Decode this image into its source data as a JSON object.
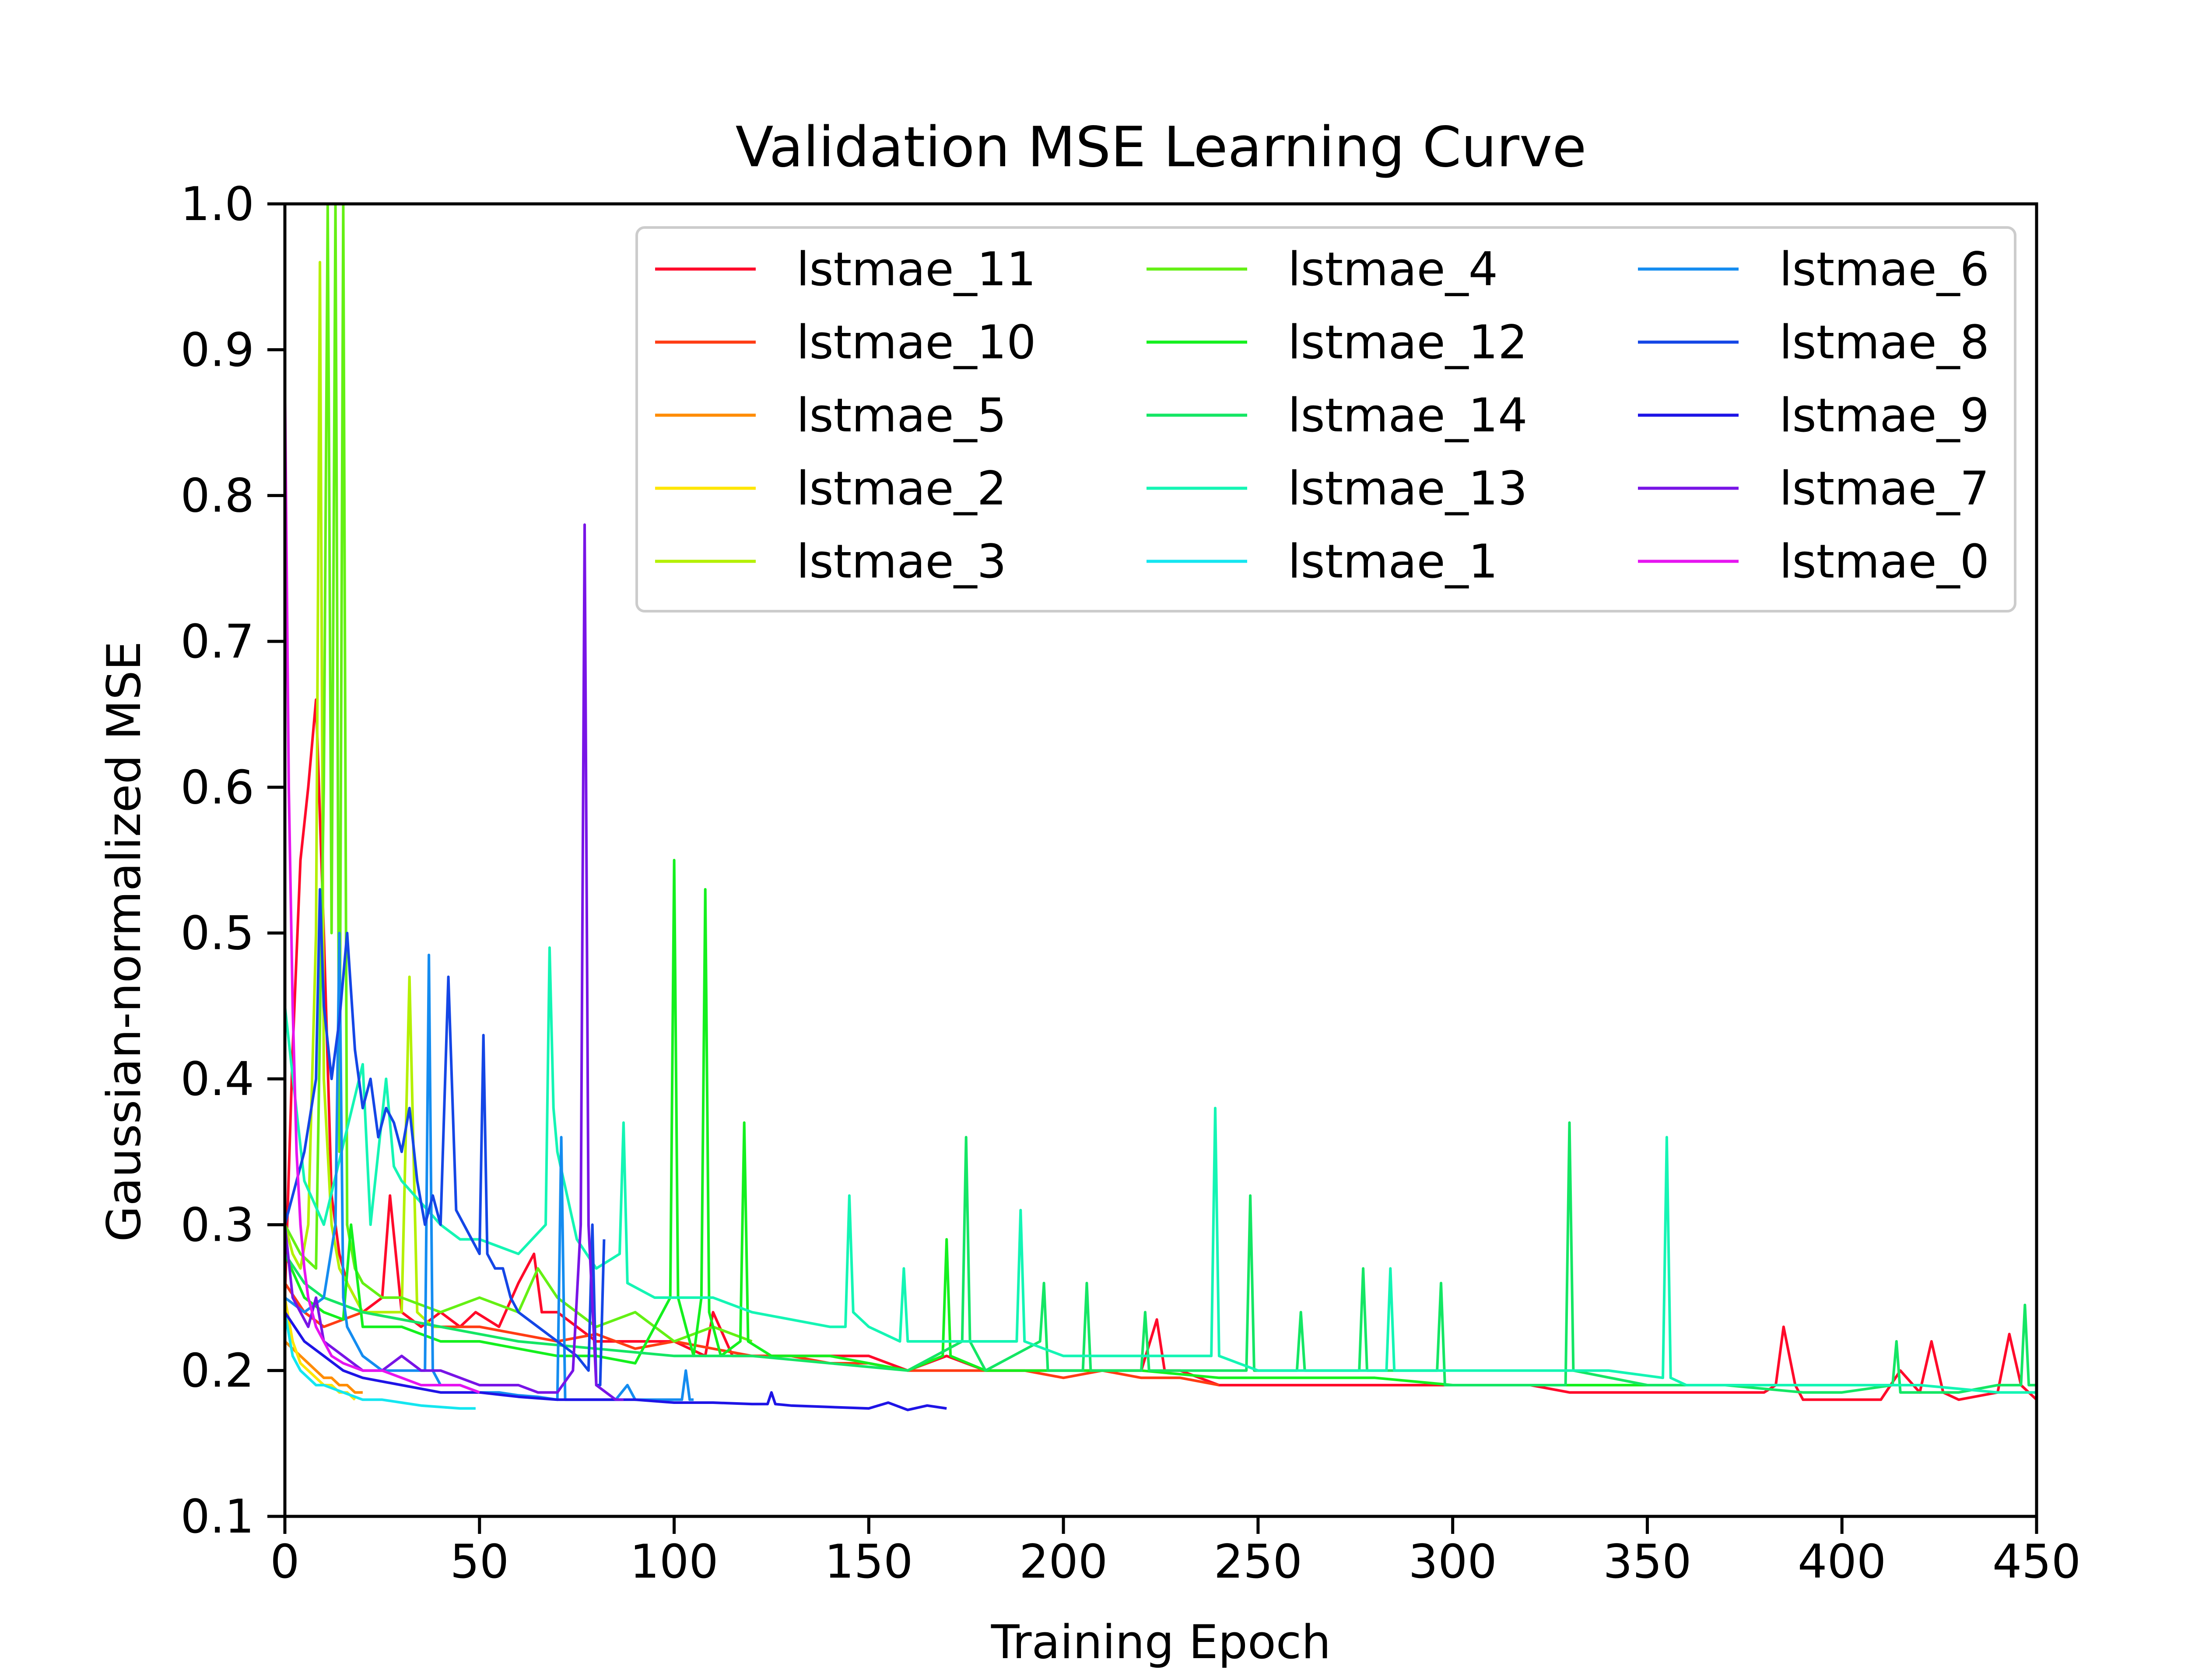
{
  "chart_data": {
    "type": "line",
    "title": "Validation MSE Learning Curve",
    "xlabel": "Training Epoch",
    "ylabel": "Gaussian-normalized MSE",
    "xlim": [
      0,
      450
    ],
    "ylim": [
      0.1,
      1.0
    ],
    "xticks": [
      0,
      50,
      100,
      150,
      200,
      250,
      300,
      350,
      400,
      450
    ],
    "xtick_labels": [
      "0",
      "50",
      "100",
      "150",
      "200",
      "250",
      "300",
      "350",
      "400",
      "450"
    ],
    "yticks": [
      0.1,
      0.2,
      0.3,
      0.4,
      0.5,
      0.6,
      0.7,
      0.8,
      0.9,
      1.0
    ],
    "ytick_labels": [
      "0.1",
      "0.2",
      "0.3",
      "0.4",
      "0.5",
      "0.6",
      "0.7",
      "0.8",
      "0.9",
      "1.0"
    ],
    "grid": false,
    "legend": {
      "placement": "top-right",
      "columns": 3
    },
    "series": [
      {
        "name": "lstmae_11",
        "color": "#ff0a2a",
        "x": [
          0,
          2,
          4,
          6,
          8,
          10,
          12,
          14,
          16,
          18,
          20,
          25,
          27,
          30,
          35,
          40,
          45,
          49,
          55,
          60,
          64,
          66,
          70,
          75,
          80,
          90,
          100,
          108,
          110,
          115,
          120,
          130,
          140,
          150,
          160,
          170,
          180,
          190,
          200,
          210,
          220,
          224,
          226,
          230,
          240,
          250,
          260,
          270,
          280,
          290,
          300,
          310,
          320,
          330,
          340,
          350,
          360,
          370,
          380,
          383,
          385,
          388,
          390,
          400,
          410,
          415,
          420,
          423,
          426,
          430,
          440,
          443,
          446,
          450
        ],
        "y": [
          0.25,
          0.42,
          0.55,
          0.6,
          0.66,
          0.5,
          0.32,
          0.28,
          0.26,
          0.25,
          0.24,
          0.25,
          0.32,
          0.24,
          0.23,
          0.24,
          0.23,
          0.24,
          0.23,
          0.26,
          0.28,
          0.24,
          0.24,
          0.23,
          0.22,
          0.22,
          0.22,
          0.21,
          0.24,
          0.21,
          0.21,
          0.21,
          0.21,
          0.21,
          0.2,
          0.21,
          0.2,
          0.2,
          0.2,
          0.2,
          0.2,
          0.235,
          0.2,
          0.2,
          0.19,
          0.19,
          0.19,
          0.19,
          0.19,
          0.19,
          0.19,
          0.19,
          0.19,
          0.185,
          0.185,
          0.185,
          0.185,
          0.185,
          0.185,
          0.19,
          0.23,
          0.19,
          0.18,
          0.18,
          0.18,
          0.2,
          0.185,
          0.22,
          0.185,
          0.18,
          0.185,
          0.225,
          0.19,
          0.18
        ]
      },
      {
        "name": "lstmae_10",
        "color": "#ff3c14",
        "x": [
          0,
          5,
          10,
          15,
          20,
          30,
          40,
          50,
          60,
          70,
          80,
          90,
          100,
          110,
          120,
          130,
          140,
          150,
          160,
          170,
          180,
          190,
          200,
          210,
          220,
          230,
          240
        ],
        "y": [
          0.26,
          0.24,
          0.23,
          0.235,
          0.24,
          0.235,
          0.23,
          0.23,
          0.225,
          0.22,
          0.225,
          0.215,
          0.22,
          0.215,
          0.21,
          0.21,
          0.205,
          0.205,
          0.2,
          0.2,
          0.2,
          0.2,
          0.195,
          0.2,
          0.195,
          0.195,
          0.19
        ]
      },
      {
        "name": "lstmae_5",
        "color": "#ff8c00",
        "x": [
          0,
          2,
          4,
          6,
          8,
          10,
          12,
          14,
          16,
          18,
          20
        ],
        "y": [
          0.22,
          0.215,
          0.21,
          0.205,
          0.2,
          0.195,
          0.195,
          0.19,
          0.19,
          0.185,
          0.185
        ]
      },
      {
        "name": "lstmae_2",
        "color": "#ffe600",
        "x": [
          0,
          2,
          4,
          6,
          8,
          10,
          12,
          14,
          16,
          18
        ],
        "y": [
          0.25,
          0.22,
          0.205,
          0.2,
          0.195,
          0.19,
          0.19,
          0.185,
          0.185,
          0.18
        ]
      },
      {
        "name": "lstmae_3",
        "color": "#b4f000",
        "x": [
          0,
          2,
          4,
          6,
          8,
          9,
          10,
          12,
          14,
          16,
          18,
          20,
          25,
          30,
          32,
          34,
          38,
          40
        ],
        "y": [
          0.3,
          0.28,
          0.27,
          0.3,
          0.5,
          0.96,
          0.4,
          0.3,
          0.27,
          0.26,
          0.25,
          0.24,
          0.24,
          0.24,
          0.47,
          0.24,
          0.23,
          0.23
        ]
      },
      {
        "name": "lstmae_4",
        "color": "#64f014",
        "x": [
          0,
          4,
          8,
          10,
          11,
          12,
          13,
          14,
          15,
          16,
          18,
          20,
          25,
          30,
          40,
          50,
          60,
          65,
          70,
          75,
          80,
          90,
          100,
          110,
          120
        ],
        "y": [
          0.3,
          0.28,
          0.27,
          0.6,
          1.0,
          0.5,
          1.0,
          0.35,
          1.0,
          0.3,
          0.27,
          0.26,
          0.25,
          0.25,
          0.24,
          0.25,
          0.24,
          0.27,
          0.25,
          0.24,
          0.23,
          0.24,
          0.22,
          0.23,
          0.22
        ]
      },
      {
        "name": "lstmae_12",
        "color": "#14f01e",
        "x": [
          0,
          5,
          10,
          15,
          17,
          20,
          30,
          40,
          50,
          60,
          70,
          80,
          90,
          99,
          100,
          101,
          105,
          107,
          108,
          109,
          112,
          117,
          118,
          119,
          125,
          140,
          160,
          169,
          170,
          171,
          180,
          200,
          220,
          240,
          260,
          280,
          300,
          320,
          340,
          360
        ],
        "y": [
          0.28,
          0.25,
          0.24,
          0.235,
          0.3,
          0.23,
          0.23,
          0.22,
          0.22,
          0.215,
          0.21,
          0.21,
          0.205,
          0.25,
          0.55,
          0.25,
          0.21,
          0.25,
          0.53,
          0.24,
          0.21,
          0.22,
          0.37,
          0.22,
          0.21,
          0.21,
          0.2,
          0.21,
          0.29,
          0.21,
          0.2,
          0.2,
          0.2,
          0.195,
          0.195,
          0.195,
          0.19,
          0.19,
          0.19,
          0.19
        ]
      },
      {
        "name": "lstmae_14",
        "color": "#14e664",
        "x": [
          0,
          5,
          10,
          20,
          40,
          60,
          80,
          100,
          120,
          140,
          160,
          174,
          175,
          176,
          180,
          194,
          195,
          196,
          205,
          206,
          207,
          220,
          221,
          222,
          240,
          247,
          248,
          249,
          260,
          261,
          262,
          276,
          277,
          278,
          296,
          297,
          298,
          310,
          329,
          330,
          331,
          350,
          370,
          390,
          400,
          413,
          414,
          415,
          430,
          440,
          446,
          447,
          448,
          450
        ],
        "y": [
          0.28,
          0.26,
          0.25,
          0.24,
          0.23,
          0.22,
          0.215,
          0.21,
          0.21,
          0.205,
          0.2,
          0.22,
          0.36,
          0.22,
          0.2,
          0.22,
          0.26,
          0.2,
          0.2,
          0.26,
          0.2,
          0.2,
          0.24,
          0.2,
          0.2,
          0.2,
          0.32,
          0.2,
          0.2,
          0.24,
          0.2,
          0.2,
          0.27,
          0.2,
          0.2,
          0.26,
          0.19,
          0.19,
          0.19,
          0.37,
          0.2,
          0.19,
          0.19,
          0.185,
          0.185,
          0.19,
          0.22,
          0.185,
          0.185,
          0.19,
          0.19,
          0.245,
          0.19,
          0.19
        ]
      },
      {
        "name": "lstmae_13",
        "color": "#14f5b4",
        "x": [
          0,
          5,
          10,
          20,
          22,
          24,
          26,
          28,
          30,
          40,
          45,
          50,
          60,
          67,
          68,
          69,
          70,
          75,
          80,
          86,
          87,
          88,
          95,
          100,
          110,
          120,
          140,
          144,
          145,
          146,
          150,
          158,
          159,
          160,
          180,
          188,
          189,
          190,
          200,
          220,
          238,
          239,
          240,
          250,
          260,
          280,
          283,
          284,
          285,
          300,
          320,
          340,
          354,
          355,
          356,
          360,
          380,
          400,
          420,
          440,
          450
        ],
        "y": [
          0.45,
          0.33,
          0.3,
          0.41,
          0.3,
          0.35,
          0.4,
          0.34,
          0.33,
          0.3,
          0.29,
          0.29,
          0.28,
          0.3,
          0.49,
          0.38,
          0.35,
          0.29,
          0.27,
          0.28,
          0.37,
          0.26,
          0.25,
          0.25,
          0.25,
          0.24,
          0.23,
          0.23,
          0.32,
          0.24,
          0.23,
          0.22,
          0.27,
          0.22,
          0.22,
          0.22,
          0.31,
          0.22,
          0.21,
          0.21,
          0.21,
          0.38,
          0.21,
          0.2,
          0.2,
          0.2,
          0.2,
          0.27,
          0.2,
          0.2,
          0.2,
          0.2,
          0.195,
          0.36,
          0.195,
          0.19,
          0.19,
          0.19,
          0.19,
          0.185,
          0.185
        ]
      },
      {
        "name": "lstmae_1",
        "color": "#14e6f0",
        "x": [
          0,
          2,
          4,
          6,
          8,
          10,
          15,
          20,
          25,
          30,
          35,
          40,
          45,
          49
        ],
        "y": [
          0.24,
          0.21,
          0.2,
          0.195,
          0.19,
          0.19,
          0.185,
          0.18,
          0.18,
          0.178,
          0.176,
          0.175,
          0.174,
          0.174
        ]
      },
      {
        "name": "lstmae_6",
        "color": "#148cf0",
        "x": [
          0,
          5,
          10,
          13,
          14,
          15,
          16,
          18,
          20,
          25,
          30,
          36,
          37,
          38,
          40,
          45,
          50,
          55,
          60,
          65,
          70,
          71,
          72,
          73,
          80,
          85,
          88,
          90,
          95,
          100,
          102,
          103,
          104,
          105
        ],
        "y": [
          0.25,
          0.24,
          0.25,
          0.3,
          0.5,
          0.25,
          0.23,
          0.22,
          0.21,
          0.2,
          0.2,
          0.2,
          0.485,
          0.2,
          0.19,
          0.19,
          0.185,
          0.185,
          0.183,
          0.182,
          0.18,
          0.36,
          0.18,
          0.18,
          0.18,
          0.18,
          0.19,
          0.18,
          0.18,
          0.18,
          0.18,
          0.2,
          0.18,
          0.18
        ]
      },
      {
        "name": "lstmae_8",
        "color": "#1446e6",
        "x": [
          0,
          5,
          8,
          9,
          10,
          12,
          14,
          16,
          18,
          20,
          22,
          24,
          26,
          28,
          30,
          32,
          34,
          36,
          38,
          40,
          42,
          44,
          46,
          48,
          50,
          51,
          52,
          54,
          56,
          58,
          60,
          65,
          70,
          75,
          78,
          79,
          80,
          81,
          82
        ],
        "y": [
          0.3,
          0.35,
          0.4,
          0.53,
          0.45,
          0.4,
          0.44,
          0.5,
          0.42,
          0.38,
          0.4,
          0.36,
          0.38,
          0.37,
          0.35,
          0.38,
          0.33,
          0.3,
          0.32,
          0.3,
          0.47,
          0.31,
          0.3,
          0.29,
          0.28,
          0.43,
          0.28,
          0.27,
          0.27,
          0.25,
          0.24,
          0.23,
          0.22,
          0.21,
          0.2,
          0.3,
          0.19,
          0.19,
          0.29
        ]
      },
      {
        "name": "lstmae_9",
        "color": "#1e14e6",
        "x": [
          0,
          5,
          10,
          15,
          20,
          30,
          40,
          50,
          60,
          70,
          80,
          90,
          100,
          110,
          120,
          124,
          125,
          126,
          130,
          140,
          150,
          155,
          160,
          165,
          170
        ],
        "y": [
          0.24,
          0.22,
          0.21,
          0.2,
          0.195,
          0.19,
          0.185,
          0.185,
          0.182,
          0.18,
          0.18,
          0.18,
          0.178,
          0.178,
          0.177,
          0.177,
          0.185,
          0.177,
          0.176,
          0.175,
          0.174,
          0.178,
          0.173,
          0.176,
          0.174
        ]
      },
      {
        "name": "lstmae_7",
        "color": "#7814e6",
        "x": [
          0,
          2,
          4,
          6,
          8,
          10,
          15,
          20,
          25,
          30,
          35,
          40,
          45,
          50,
          55,
          60,
          65,
          70,
          74,
          75,
          76,
          77,
          78,
          80,
          85,
          87
        ],
        "y": [
          0.3,
          0.25,
          0.24,
          0.23,
          0.25,
          0.22,
          0.21,
          0.2,
          0.2,
          0.21,
          0.2,
          0.2,
          0.195,
          0.19,
          0.19,
          0.19,
          0.185,
          0.185,
          0.2,
          0.25,
          0.3,
          0.78,
          0.3,
          0.19,
          0.18,
          0.18
        ]
      },
      {
        "name": "lstmae_0",
        "color": "#e614f0",
        "x": [
          0,
          1,
          2,
          3,
          4,
          5,
          6,
          8,
          10,
          12,
          15,
          20,
          25,
          30,
          35,
          40,
          45,
          50
        ],
        "y": [
          0.88,
          0.6,
          0.45,
          0.35,
          0.3,
          0.27,
          0.25,
          0.23,
          0.22,
          0.21,
          0.205,
          0.2,
          0.2,
          0.195,
          0.19,
          0.19,
          0.19,
          0.185
        ]
      }
    ]
  }
}
